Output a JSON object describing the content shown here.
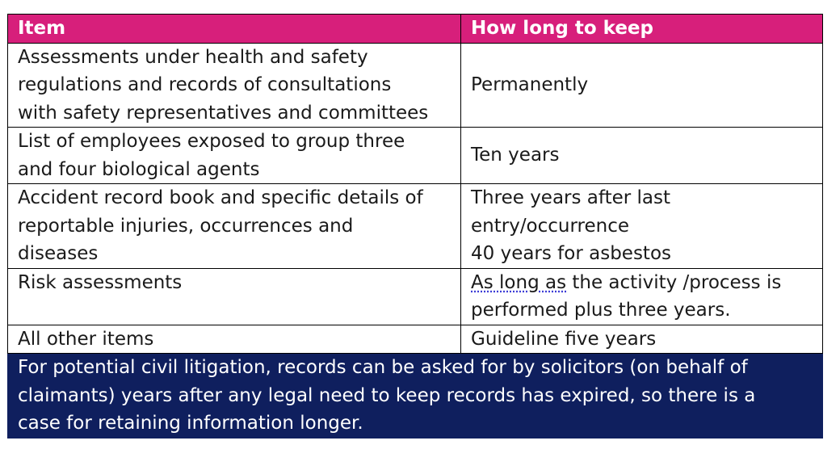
{
  "table": {
    "headers": [
      "Item",
      "How long to keep"
    ],
    "rows": [
      {
        "item_lines": [
          "Assessments under health and safety",
          "regulations and records of consultations",
          "with safety representatives and committees"
        ],
        "keep_lines": [
          "Permanently"
        ]
      },
      {
        "item_lines": [
          "List of employees exposed to group three",
          "and four biological agents"
        ],
        "keep_lines": [
          "Ten years"
        ]
      },
      {
        "item_lines": [
          "Accident record book and specific details of",
          "reportable injuries, occurrences and",
          "diseases"
        ],
        "keep_lines": [
          "Three years after last",
          "entry/occurrence",
          "40 years for asbestos"
        ]
      },
      {
        "item_lines": [
          "Risk assessments"
        ],
        "keep_lines": [
          "As long as the activity /process is",
          "performed plus three years."
        ],
        "keep_first_underlined": "As long as",
        "keep_first_rest": " the activity /process is"
      },
      {
        "item_lines": [
          "All other items"
        ],
        "keep_lines": [
          "Guideline five years"
        ]
      }
    ],
    "note_lines": [
      "For potential civil litigation, records can be asked for by solicitors (on behalf of",
      "claimants) years after any legal need to keep records has expired, so there is a",
      "case for retaining information longer."
    ]
  },
  "colors": {
    "header_bg": "#d71f7b",
    "note_bg": "#0f1f5e"
  }
}
